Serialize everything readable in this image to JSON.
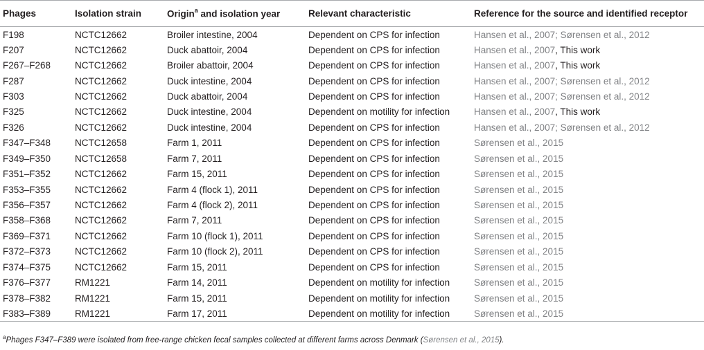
{
  "table": {
    "headers": {
      "phages": "Phages",
      "isolation_strain": "Isolation strain",
      "origin_prefix": "Origin",
      "origin_sup": "a",
      "origin_suffix": " and isolation year",
      "relevant": "Relevant characteristic",
      "reference": "Reference for the source and identified receptor"
    },
    "rows": [
      {
        "phage": "F198",
        "strain": "NCTC12662",
        "origin": "Broiler intestine, 2004",
        "characteristic": "Dependent on CPS for infection",
        "ref": "Hansen et al., 2007; Sørensen et al., 2012",
        "ref_extra": ""
      },
      {
        "phage": "F207",
        "strain": "NCTC12662",
        "origin": "Duck abattoir, 2004",
        "characteristic": "Dependent on CPS for infection",
        "ref": "Hansen et al., 2007",
        "ref_extra": ", This work"
      },
      {
        "phage": "F267–F268",
        "strain": "NCTC12662",
        "origin": "Broiler abattoir, 2004",
        "characteristic": "Dependent on CPS for infection",
        "ref": "Hansen et al., 2007",
        "ref_extra": ", This work"
      },
      {
        "phage": "F287",
        "strain": "NCTC12662",
        "origin": "Duck intestine, 2004",
        "characteristic": "Dependent on CPS for infection",
        "ref": "Hansen et al., 2007; Sørensen et al., 2012",
        "ref_extra": ""
      },
      {
        "phage": "F303",
        "strain": "NCTC12662",
        "origin": "Duck abattoir, 2004",
        "characteristic": "Dependent on CPS for infection",
        "ref": "Hansen et al., 2007; Sørensen et al., 2012",
        "ref_extra": ""
      },
      {
        "phage": "F325",
        "strain": "NCTC12662",
        "origin": "Duck intestine, 2004",
        "characteristic": "Dependent on motility for infection",
        "ref": "Hansen et al., 2007",
        "ref_extra": ", This work"
      },
      {
        "phage": "F326",
        "strain": "NCTC12662",
        "origin": "Duck intestine, 2004",
        "characteristic": "Dependent on CPS for infection",
        "ref": "Hansen et al., 2007; Sørensen et al., 2012",
        "ref_extra": ""
      },
      {
        "phage": "F347–F348",
        "strain": "NCTC12658",
        "origin": "Farm 1, 2011",
        "characteristic": "Dependent on CPS for infection",
        "ref": "Sørensen et al., 2015",
        "ref_extra": ""
      },
      {
        "phage": "F349–F350",
        "strain": "NCTC12658",
        "origin": "Farm 7, 2011",
        "characteristic": "Dependent on CPS for infection",
        "ref": "Sørensen et al., 2015",
        "ref_extra": ""
      },
      {
        "phage": "F351–F352",
        "strain": "NCTC12662",
        "origin": "Farm 15, 2011",
        "characteristic": "Dependent on CPS for infection",
        "ref": "Sørensen et al., 2015",
        "ref_extra": ""
      },
      {
        "phage": "F353–F355",
        "strain": "NCTC12662",
        "origin": "Farm 4 (flock 1), 2011",
        "characteristic": "Dependent on CPS for infection",
        "ref": "Sørensen et al., 2015",
        "ref_extra": ""
      },
      {
        "phage": "F356–F357",
        "strain": "NCTC12662",
        "origin": "Farm 4 (flock 2), 2011",
        "characteristic": "Dependent on CPS for infection",
        "ref": "Sørensen et al., 2015",
        "ref_extra": ""
      },
      {
        "phage": "F358–F368",
        "strain": "NCTC12662",
        "origin": "Farm 7, 2011",
        "characteristic": "Dependent on CPS for infection",
        "ref": "Sørensen et al., 2015",
        "ref_extra": ""
      },
      {
        "phage": "F369–F371",
        "strain": "NCTC12662",
        "origin": "Farm 10 (flock 1), 2011",
        "characteristic": "Dependent on CPS for infection",
        "ref": "Sørensen et al., 2015",
        "ref_extra": ""
      },
      {
        "phage": "F372–F373",
        "strain": "NCTC12662",
        "origin": "Farm 10 (flock 2), 2011",
        "characteristic": "Dependent on CPS for infection",
        "ref": "Sørensen et al., 2015",
        "ref_extra": ""
      },
      {
        "phage": "F374–F375",
        "strain": "NCTC12662",
        "origin": "Farm 15, 2011",
        "characteristic": "Dependent on CPS for infection",
        "ref": "Sørensen et al., 2015",
        "ref_extra": ""
      },
      {
        "phage": "F376–F377",
        "strain": "RM1221",
        "origin": "Farm 14, 2011",
        "characteristic": "Dependent on motility for infection",
        "ref": "Sørensen et al., 2015",
        "ref_extra": ""
      },
      {
        "phage": "F378–F382",
        "strain": "RM1221",
        "origin": "Farm 15, 2011",
        "characteristic": "Dependent on motility for infection",
        "ref": "Sørensen et al., 2015",
        "ref_extra": ""
      },
      {
        "phage": "F383–F389",
        "strain": "RM1221",
        "origin": "Farm 17, 2011",
        "characteristic": "Dependent on motility for infection",
        "ref": "Sørensen et al., 2015",
        "ref_extra": ""
      }
    ]
  },
  "footnote": {
    "marker": "a",
    "text": "Phages F347–F389 were isolated from free-range chicken fecal samples collected at different farms across Denmark (",
    "citation": "Sørensen et al., 2015",
    "closing": ")."
  }
}
